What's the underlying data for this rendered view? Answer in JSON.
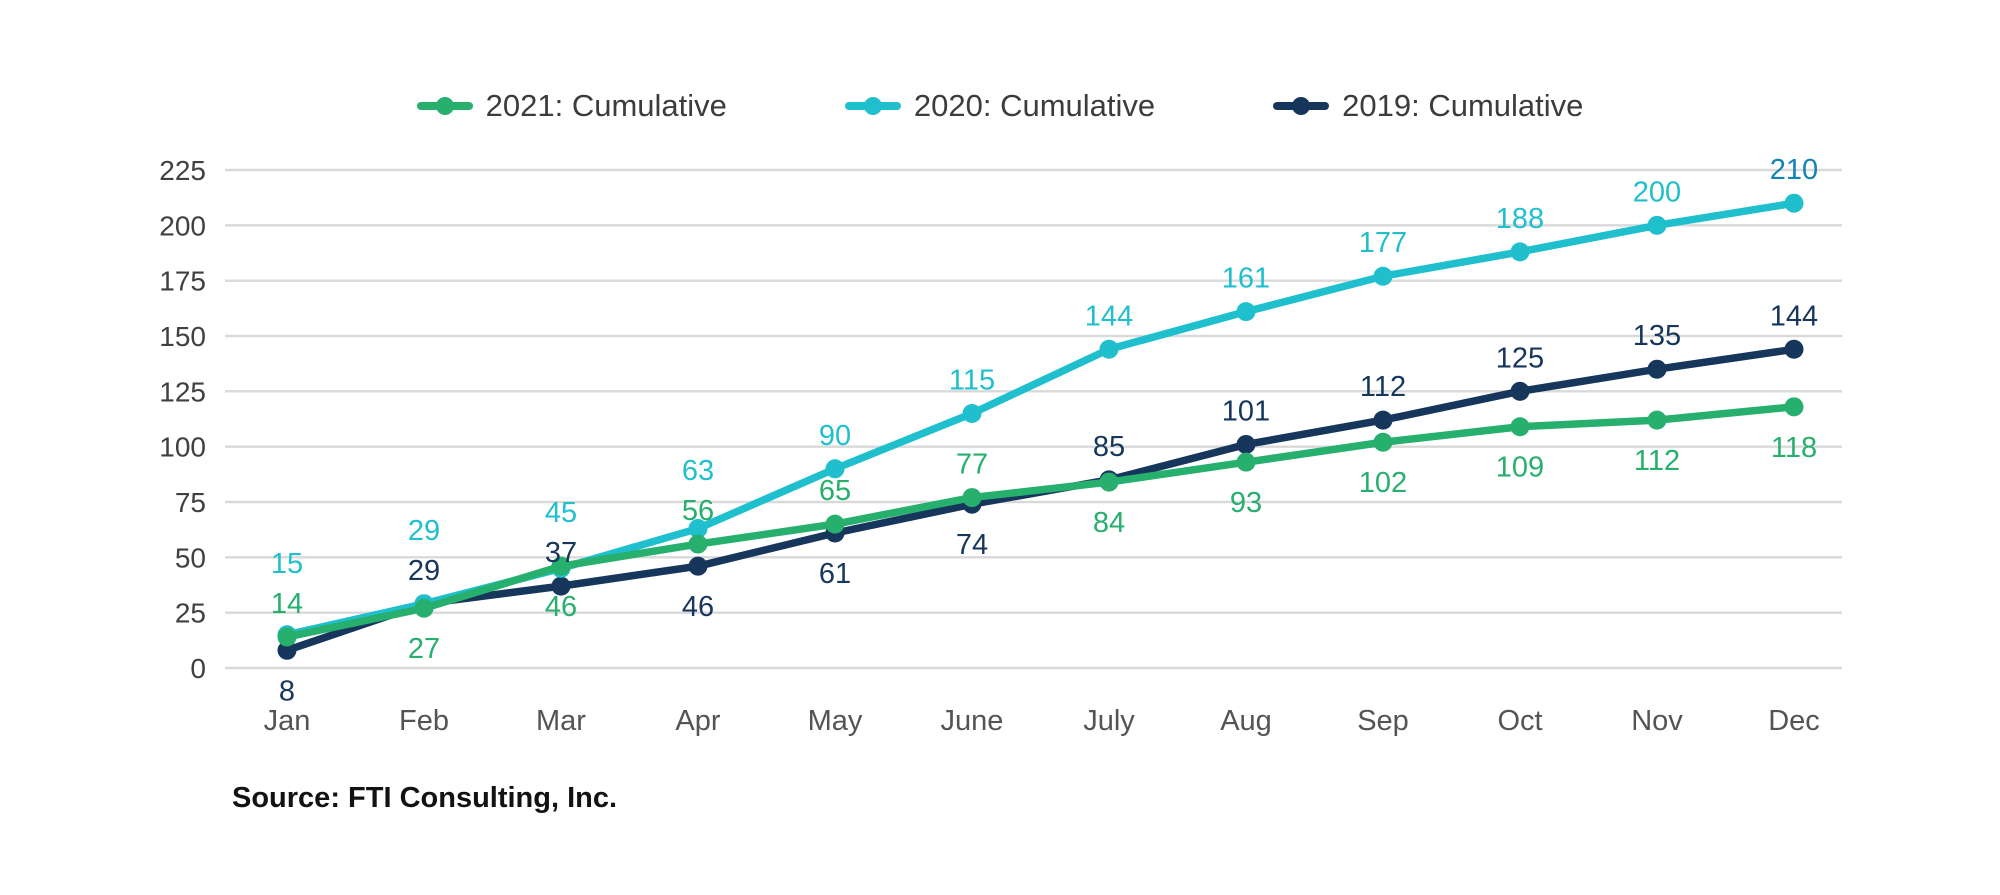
{
  "page": {
    "background_color": "#ffffff"
  },
  "source_note": "Source: FTI Consulting, Inc.",
  "chart_data": {
    "type": "line",
    "title": "",
    "xlabel": "",
    "ylabel": "",
    "categories": [
      "Jan",
      "Feb",
      "Mar",
      "Apr",
      "May",
      "June",
      "July",
      "Aug",
      "Sep",
      "Oct",
      "Nov",
      "Dec"
    ],
    "series": [
      {
        "name": "2021: Cumulative",
        "color": "#27AF6D",
        "values": [
          14,
          27,
          46,
          56,
          65,
          77,
          84,
          93,
          102,
          109,
          112,
          118
        ],
        "label_placement": [
          "above",
          "below",
          "below",
          "above",
          "above",
          "above",
          "below",
          "below",
          "below",
          "below",
          "below",
          "below"
        ],
        "label_color_overrides": []
      },
      {
        "name": "2020: Cumulative",
        "color": "#1FBFCD",
        "values": [
          15,
          29,
          45,
          63,
          90,
          115,
          144,
          161,
          177,
          188,
          200,
          210
        ],
        "label_placement": [
          "above",
          "above",
          "above",
          "above",
          "above",
          "above",
          "above",
          "above",
          "above",
          "above",
          "above",
          "above"
        ],
        "label_color_overrides": [
          {
            "index": 11,
            "color": "#1283B5"
          }
        ]
      },
      {
        "name": "2019: Cumulative",
        "color": "#16365C",
        "values": [
          8,
          29,
          37,
          46,
          61,
          74,
          85,
          101,
          112,
          125,
          135,
          144
        ],
        "label_placement": [
          "below",
          "above",
          "above",
          "below",
          "below",
          "below",
          "above",
          "above",
          "above",
          "above",
          "above",
          "above"
        ],
        "label_color_overrides": []
      }
    ],
    "ylim": [
      0,
      225
    ],
    "yticks": [
      0,
      25,
      50,
      75,
      100,
      125,
      150,
      175,
      200,
      225
    ],
    "grid": true,
    "show_markers": true,
    "show_value_labels": true,
    "legend_position": "top-center",
    "colors": {
      "gridline": "#D9D9D9",
      "ytick_text": "#404040",
      "xtick_text": "#545454",
      "legend_text": "#3c3c3c"
    }
  }
}
